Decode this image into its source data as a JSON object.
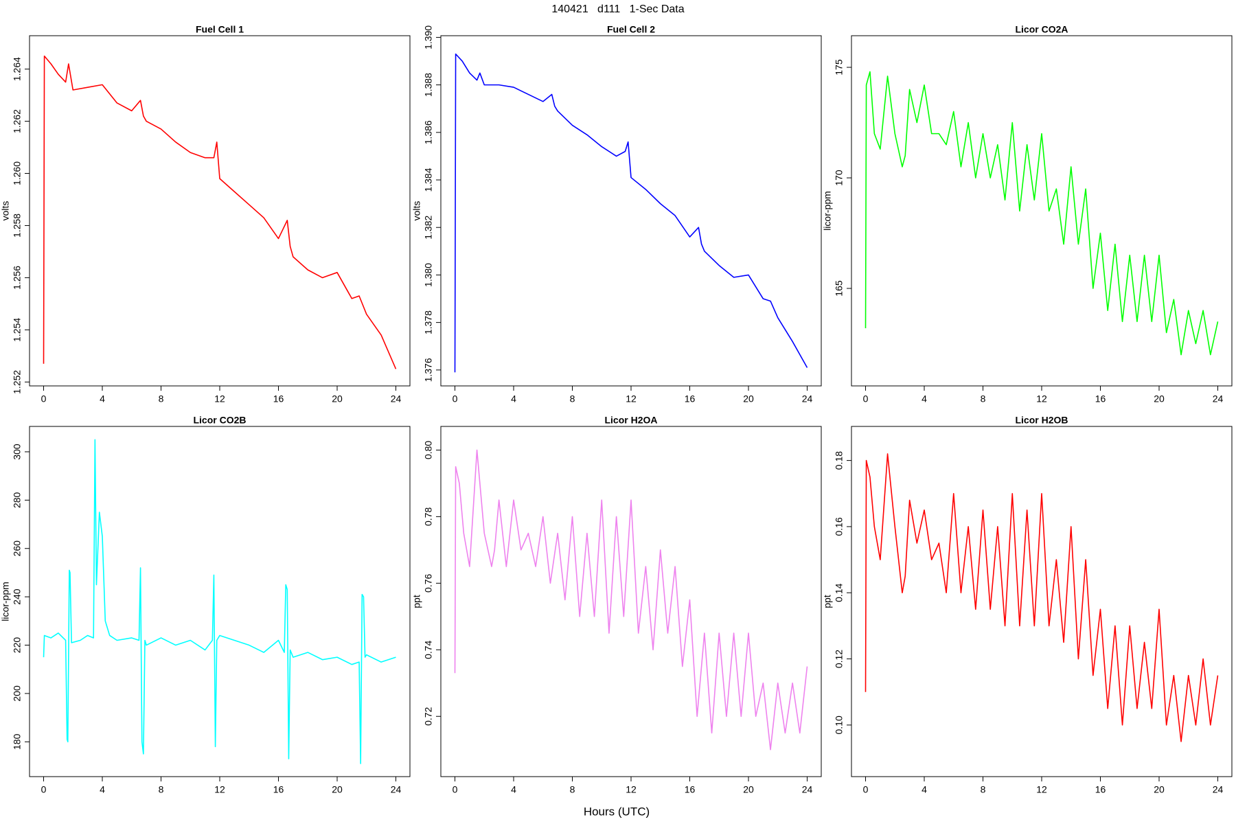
{
  "title": "140421   d111   1-Sec Data",
  "xlabel": "Hours (UTC)",
  "chart_data": [
    {
      "type": "line",
      "title": "Fuel Cell 1",
      "ylabel": "volts",
      "color": "#ff0000",
      "x": [
        0,
        0.05,
        0.5,
        1,
        1.5,
        1.7,
        2,
        3,
        4,
        5,
        6,
        6.6,
        6.8,
        7,
        8,
        9,
        10,
        11,
        11.6,
        11.8,
        12,
        13,
        14,
        15,
        16,
        16.6,
        16.8,
        17,
        18,
        19,
        20,
        21,
        21.5,
        22,
        23,
        24
      ],
      "values": [
        1.2527,
        1.2645,
        1.2642,
        1.2638,
        1.2635,
        1.2642,
        1.2632,
        1.2633,
        1.2634,
        1.2627,
        1.2624,
        1.2628,
        1.2622,
        1.262,
        1.2617,
        1.2612,
        1.2608,
        1.2606,
        1.2606,
        1.2612,
        1.2598,
        1.2593,
        1.2588,
        1.2583,
        1.2575,
        1.2582,
        1.2572,
        1.2568,
        1.2563,
        1.256,
        1.2562,
        1.2552,
        1.2553,
        1.2546,
        1.2538,
        1.2525
      ],
      "xlim": [
        -0.96,
        24.96
      ],
      "ylim": [
        1.25185,
        1.26528
      ],
      "xticks": [
        0,
        4,
        8,
        12,
        16,
        20,
        24
      ],
      "yticks": [
        1.252,
        1.254,
        1.256,
        1.258,
        {
          "value": 1.26,
          "label": "1.260"
        },
        1.262,
        1.264
      ]
    },
    {
      "type": "line",
      "title": "Fuel Cell 2",
      "ylabel": "volts",
      "color": "#0000ff",
      "x": [
        0,
        0.05,
        0.5,
        1,
        1.5,
        1.7,
        2,
        3,
        4,
        5,
        6,
        6.6,
        6.8,
        7,
        8,
        9,
        10,
        11,
        11.6,
        11.8,
        12,
        13,
        14,
        15,
        16,
        16.6,
        16.8,
        17,
        18,
        19,
        20,
        21,
        21.5,
        22,
        23,
        24
      ],
      "values": [
        1.3759,
        1.3893,
        1.389,
        1.3885,
        1.3882,
        1.3885,
        1.388,
        1.388,
        1.3879,
        1.3876,
        1.3873,
        1.3876,
        1.3871,
        1.3869,
        1.3863,
        1.3859,
        1.3854,
        1.385,
        1.3852,
        1.3856,
        1.3841,
        1.3836,
        1.383,
        1.3825,
        1.3816,
        1.382,
        1.3813,
        1.381,
        1.3804,
        1.3799,
        1.38,
        1.379,
        1.3789,
        1.3782,
        1.3772,
        1.3761
      ],
      "xlim": [
        -0.96,
        24.96
      ],
      "ylim": [
        1.37533,
        1.39007
      ],
      "xticks": [
        0,
        4,
        8,
        12,
        16,
        20,
        24
      ],
      "yticks": [
        1.376,
        1.378,
        {
          "value": 1.38,
          "label": "1.380"
        },
        1.382,
        1.384,
        1.386,
        1.388,
        {
          "value": 1.39,
          "label": "1.390"
        }
      ]
    },
    {
      "type": "line",
      "title": "Licor CO2A",
      "ylabel": "licor-ppm",
      "color": "#00ff00",
      "x": [
        0,
        0.05,
        0.3,
        0.6,
        1,
        1.5,
        2,
        2.5,
        2.7,
        3,
        3.5,
        4,
        4.5,
        5,
        5.5,
        6,
        6.5,
        7,
        7.5,
        8,
        8.5,
        9,
        9.5,
        10,
        10.5,
        11,
        11.5,
        12,
        12.5,
        13,
        13.5,
        14,
        14.5,
        15,
        15.5,
        16,
        16.5,
        17,
        17.5,
        18,
        18.5,
        19,
        19.5,
        20,
        20.5,
        21,
        21.5,
        22,
        22.5,
        23,
        23.5,
        24
      ],
      "values": [
        163.2,
        174.2,
        174.8,
        172,
        171.3,
        174.6,
        172,
        170.5,
        171,
        174,
        172.5,
        174.2,
        172,
        172,
        171.5,
        173,
        170.5,
        172.5,
        170,
        172,
        170,
        171.5,
        169,
        172.5,
        168.5,
        171.5,
        169,
        172,
        168.5,
        169.5,
        167,
        170.5,
        167,
        169.5,
        165,
        167.5,
        164,
        167,
        163.5,
        166.5,
        163.5,
        166.5,
        163.5,
        166.5,
        163,
        164.5,
        162,
        164,
        162.5,
        164,
        162,
        163.5
      ],
      "xlim": [
        -0.96,
        24.96
      ],
      "ylim": [
        160.59,
        176.43
      ],
      "xticks": [
        0,
        4,
        8,
        12,
        16,
        20,
        24
      ],
      "yticks": [
        165,
        170,
        175
      ]
    },
    {
      "type": "line",
      "title": "Licor CO2B",
      "ylabel": "licor-ppm",
      "color": "#00ffff",
      "x": [
        0,
        0.05,
        0.5,
        1,
        1.5,
        1.6,
        1.65,
        1.75,
        1.8,
        1.9,
        2.5,
        3,
        3.4,
        3.5,
        3.6,
        3.8,
        4,
        4.2,
        4.5,
        5,
        6,
        6.5,
        6.6,
        6.7,
        6.8,
        6.9,
        7,
        8,
        9,
        10,
        11,
        11.5,
        11.6,
        11.7,
        11.8,
        12,
        13,
        14,
        15,
        16,
        16.4,
        16.5,
        16.6,
        16.7,
        16.8,
        17,
        18,
        19,
        20,
        21,
        21.5,
        21.6,
        21.7,
        21.8,
        21.9,
        22,
        23,
        24
      ],
      "values": [
        215,
        224,
        223,
        225,
        222,
        181,
        180,
        251,
        250,
        221,
        222,
        224,
        223,
        305,
        245,
        275,
        265,
        230,
        224,
        222,
        223,
        222,
        252,
        180,
        175,
        222,
        220,
        223,
        220,
        222,
        218,
        222,
        249,
        178,
        222,
        224,
        222,
        220,
        217,
        222,
        217,
        245,
        243,
        173,
        218,
        215,
        217,
        214,
        215,
        212,
        213,
        171,
        241,
        240,
        215,
        216,
        213,
        215
      ],
      "xlim": [
        -0.96,
        24.96
      ],
      "ylim": [
        165.6,
        310.5
      ],
      "xticks": [
        0,
        4,
        8,
        12,
        16,
        20,
        24
      ],
      "yticks": [
        180,
        200,
        220,
        240,
        260,
        280,
        300
      ]
    },
    {
      "type": "line",
      "title": "Licor H2OA",
      "ylabel": "ppt",
      "color": "#ee82ee",
      "x": [
        0,
        0.05,
        0.3,
        0.6,
        1,
        1.5,
        2,
        2.5,
        2.7,
        3,
        3.5,
        4,
        4.5,
        5,
        5.5,
        6,
        6.5,
        7,
        7.5,
        8,
        8.5,
        9,
        9.5,
        10,
        10.5,
        11,
        11.5,
        12,
        12.5,
        13,
        13.5,
        14,
        14.5,
        15,
        15.5,
        16,
        16.5,
        17,
        17.5,
        18,
        18.5,
        19,
        19.5,
        20,
        20.5,
        21,
        21.5,
        22,
        22.5,
        23,
        23.5,
        24
      ],
      "values": [
        0.733,
        0.795,
        0.79,
        0.775,
        0.765,
        0.8,
        0.775,
        0.765,
        0.77,
        0.785,
        0.765,
        0.785,
        0.77,
        0.775,
        0.765,
        0.78,
        0.76,
        0.775,
        0.755,
        0.78,
        0.75,
        0.775,
        0.75,
        0.785,
        0.745,
        0.78,
        0.75,
        0.785,
        0.745,
        0.765,
        0.74,
        0.77,
        0.745,
        0.765,
        0.735,
        0.755,
        0.72,
        0.745,
        0.715,
        0.745,
        0.72,
        0.745,
        0.72,
        0.745,
        0.72,
        0.73,
        0.71,
        0.73,
        0.715,
        0.73,
        0.715,
        0.735
      ],
      "xlim": [
        -0.96,
        24.96
      ],
      "ylim": [
        0.7019,
        0.8071
      ],
      "xticks": [
        0,
        4,
        8,
        12,
        16,
        20,
        24
      ],
      "yticks": [
        0.72,
        0.74,
        0.76,
        0.78,
        {
          "value": 0.8,
          "label": "0.80"
        }
      ]
    },
    {
      "type": "line",
      "title": "Licor H2OB",
      "ylabel": "ppt",
      "color": "#ff0000",
      "x": [
        0,
        0.05,
        0.3,
        0.6,
        1,
        1.5,
        2,
        2.5,
        2.7,
        3,
        3.5,
        4,
        4.5,
        5,
        5.5,
        6,
        6.5,
        7,
        7.5,
        8,
        8.5,
        9,
        9.5,
        10,
        10.5,
        11,
        11.5,
        12,
        12.5,
        13,
        13.5,
        14,
        14.5,
        15,
        15.5,
        16,
        16.5,
        17,
        17.5,
        18,
        18.5,
        19,
        19.5,
        20,
        20.5,
        21,
        21.5,
        22,
        22.5,
        23,
        23.5,
        24
      ],
      "values": [
        0.11,
        0.18,
        0.175,
        0.16,
        0.15,
        0.182,
        0.16,
        0.14,
        0.145,
        0.168,
        0.155,
        0.165,
        0.15,
        0.155,
        0.14,
        0.17,
        0.14,
        0.16,
        0.135,
        0.165,
        0.135,
        0.16,
        0.13,
        0.17,
        0.13,
        0.165,
        0.13,
        0.17,
        0.13,
        0.15,
        0.125,
        0.16,
        0.12,
        0.15,
        0.115,
        0.135,
        0.105,
        0.13,
        0.1,
        0.13,
        0.105,
        0.125,
        0.105,
        0.135,
        0.1,
        0.115,
        0.095,
        0.115,
        0.1,
        0.12,
        0.1,
        0.115
      ],
      "xlim": [
        -0.96,
        24.96
      ],
      "ylim": [
        0.0844,
        0.1903
      ],
      "xticks": [
        0,
        4,
        8,
        12,
        16,
        20,
        24
      ],
      "yticks": [
        {
          "value": 0.1,
          "label": "0.10"
        },
        0.12,
        0.14,
        0.16,
        0.18
      ]
    }
  ]
}
